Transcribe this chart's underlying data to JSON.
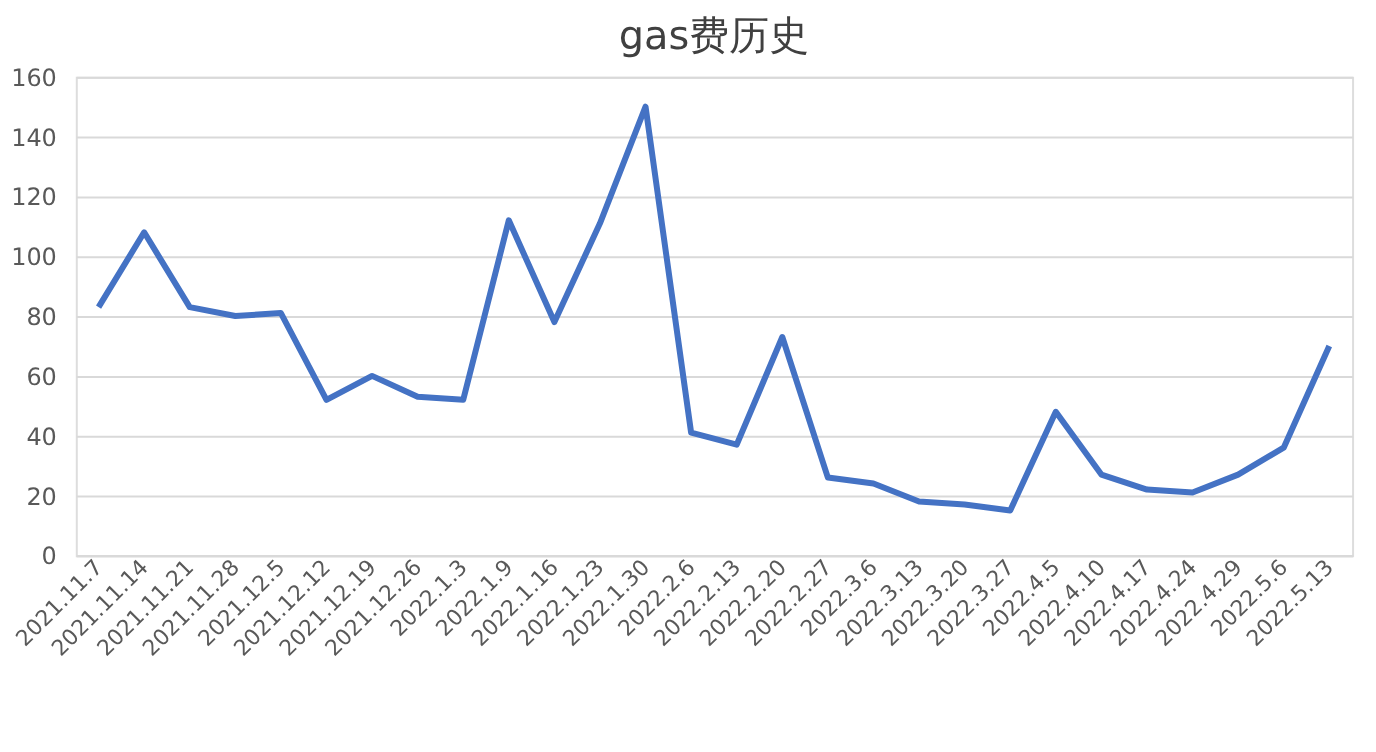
{
  "chart_data": {
    "type": "line",
    "title": "gas费历史",
    "categories": [
      "2021.11.7",
      "2021.11.14",
      "2021.11.21",
      "2021.11.28",
      "2021.12.5",
      "2021.12.12",
      "2021.12.19",
      "2021.12.26",
      "2022.1.3",
      "2022.1.9",
      "2022.1.16",
      "2022.1.23",
      "2022.1.30",
      "2022.2.6",
      "2022.2.13",
      "2022.2.20",
      "2022.2.27",
      "2022.3.6",
      "2022.3.13",
      "2022.3.20",
      "2022.3.27",
      "2022.4.5",
      "2022.4.10",
      "2022.4.17",
      "2022.4.24",
      "2022.4.29",
      "2022.5.6",
      "2022.5.13"
    ],
    "series": [
      {
        "color": "#4472c4",
        "values": [
          83,
          108,
          83,
          80,
          81,
          52,
          60,
          53,
          52,
          112,
          78,
          111,
          150,
          41,
          37,
          73,
          26,
          24,
          18,
          17,
          15,
          48,
          27,
          22,
          21,
          27,
          36,
          70
        ]
      }
    ],
    "ylim": [
      0,
      160
    ],
    "yticks": [
      0,
      20,
      40,
      60,
      80,
      100,
      120,
      140,
      160
    ],
    "grid": "y",
    "legend": false,
    "marker": "none",
    "line_style": "solid"
  }
}
